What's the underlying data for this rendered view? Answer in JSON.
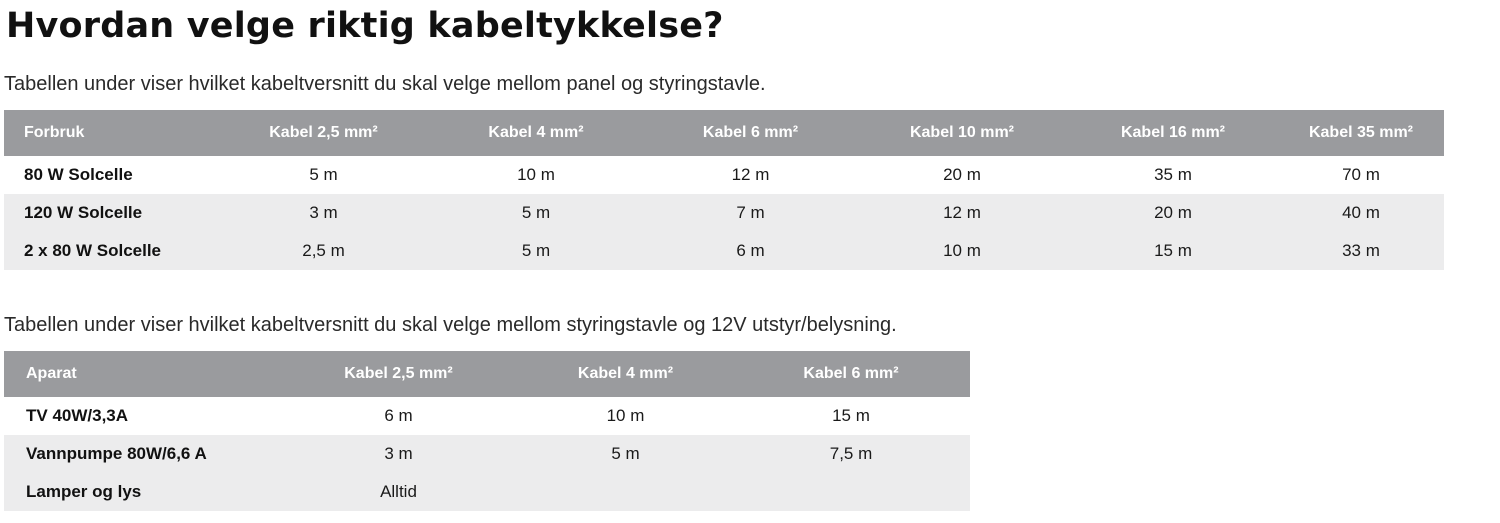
{
  "title": "Hvordan velge riktig kabeltykkelse?",
  "section1": {
    "intro": "Tabellen under viser hvilket kabeltversnitt du skal velge mellom panel og styringstavle.",
    "headers": [
      "Forbruk",
      "Kabel 2,5 mm²",
      "Kabel 4 mm²",
      "Kabel 6 mm²",
      "Kabel 10 mm²",
      "Kabel 16 mm²",
      "Kabel 35 mm²"
    ],
    "rows": [
      [
        "80 W Solcelle",
        "5 m",
        "10 m",
        "12 m",
        "20 m",
        "35 m",
        "70 m"
      ],
      [
        "120 W Solcelle",
        "3 m",
        "5 m",
        "7 m",
        "12 m",
        "20 m",
        "40 m"
      ],
      [
        "2 x 80 W Solcelle",
        "2,5 m",
        "5 m",
        "6 m",
        "10 m",
        "15 m",
        "33 m"
      ]
    ]
  },
  "section2": {
    "intro": "Tabellen under viser hvilket kabeltversnitt du skal velge mellom styringstavle og 12V utstyr/belysning.",
    "headers": [
      "Aparat",
      "Kabel 2,5 mm²",
      "Kabel 4 mm²",
      "Kabel 6 mm²"
    ],
    "rows": [
      [
        "TV 40W/3,3A",
        "6 m",
        "10 m",
        "15 m"
      ],
      [
        "Vannpumpe 80W/6,6 A",
        "3 m",
        "5 m",
        "7,5 m"
      ],
      [
        "Lamper og lys",
        "Alltid",
        "",
        ""
      ]
    ]
  },
  "colors": {
    "header_bg": "#9a9b9e",
    "header_text": "#ffffff",
    "row_alt_bg": "#ececed"
  }
}
